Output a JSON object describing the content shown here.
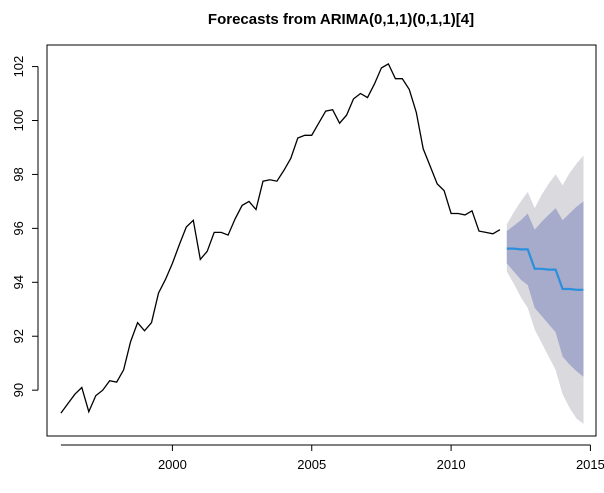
{
  "chart_data": {
    "type": "line",
    "title": "Forecasts from ARIMA(0,1,1)(0,1,1)[4]",
    "xlabel": "",
    "ylabel": "",
    "xlim": [
      1995.5,
      2015.2
    ],
    "ylim": [
      88.3,
      102.8
    ],
    "x_ticks": [
      2000,
      2005,
      2010,
      2015
    ],
    "y_ticks": [
      90,
      92,
      94,
      96,
      98,
      100,
      102
    ],
    "grid": false,
    "colors": {
      "history": "#000000",
      "forecast": "#2b8fde",
      "band80": "#a6abcb",
      "band95": "#d9d9de"
    },
    "series": [
      {
        "kind": "history",
        "x": [
          1996.0,
          1996.25,
          1996.5,
          1996.75,
          1997.0,
          1997.25,
          1997.5,
          1997.75,
          1998.0,
          1998.25,
          1998.5,
          1998.75,
          1999.0,
          1999.25,
          1999.5,
          1999.75,
          2000.0,
          2000.25,
          2000.5,
          2000.75,
          2001.0,
          2001.25,
          2001.5,
          2001.75,
          2002.0,
          2002.25,
          2002.5,
          2002.75,
          2003.0,
          2003.25,
          2003.5,
          2003.75,
          2004.0,
          2004.25,
          2004.5,
          2004.75,
          2005.0,
          2005.25,
          2005.5,
          2005.75,
          2006.0,
          2006.25,
          2006.5,
          2006.75,
          2007.0,
          2007.25,
          2007.5,
          2007.75,
          2008.0,
          2008.25,
          2008.5,
          2008.75,
          2009.0,
          2009.25,
          2009.5,
          2009.75,
          2010.0,
          2010.25,
          2010.5,
          2010.75,
          2011.0,
          2011.25,
          2011.5,
          2011.75
        ],
        "values": [
          89.15,
          89.5,
          89.85,
          90.1,
          89.2,
          89.8,
          90.0,
          90.35,
          90.3,
          90.75,
          91.8,
          92.5,
          92.2,
          92.5,
          93.6,
          94.1,
          94.7,
          95.4,
          96.05,
          96.3,
          94.85,
          95.15,
          95.85,
          95.85,
          95.75,
          96.35,
          96.85,
          97.0,
          96.7,
          97.75,
          97.8,
          97.75,
          98.15,
          98.6,
          99.35,
          99.45,
          99.45,
          99.9,
          100.35,
          100.4,
          99.9,
          100.2,
          100.8,
          101.0,
          100.85,
          101.35,
          101.95,
          102.1,
          101.55,
          101.55,
          101.15,
          100.3,
          98.95,
          98.3,
          97.65,
          97.4,
          96.55,
          96.55,
          96.5,
          96.65,
          95.9,
          95.85,
          95.8,
          95.95
        ]
      },
      {
        "kind": "forecast",
        "x": [
          2012.0,
          2012.25,
          2012.5,
          2012.75,
          2013.0,
          2013.25,
          2013.5,
          2013.75,
          2014.0,
          2014.25,
          2014.5,
          2014.75
        ],
        "values": [
          95.25,
          95.25,
          95.22,
          95.22,
          94.5,
          94.5,
          94.47,
          94.47,
          93.75,
          93.75,
          93.72,
          93.72
        ],
        "lo80": [
          94.7,
          94.4,
          94.1,
          93.9,
          93.05,
          92.75,
          92.45,
          92.15,
          91.25,
          90.95,
          90.7,
          90.5
        ],
        "hi80": [
          95.9,
          96.1,
          96.3,
          96.55,
          95.95,
          96.25,
          96.5,
          96.75,
          96.3,
          96.55,
          96.8,
          97.0
        ],
        "lo95": [
          94.4,
          93.95,
          93.45,
          93.05,
          92.25,
          91.75,
          91.25,
          90.75,
          89.85,
          89.35,
          88.95,
          88.75
        ],
        "hi95": [
          96.15,
          96.6,
          97.0,
          97.35,
          96.75,
          97.25,
          97.65,
          98.0,
          97.6,
          98.05,
          98.4,
          98.7
        ]
      }
    ]
  }
}
